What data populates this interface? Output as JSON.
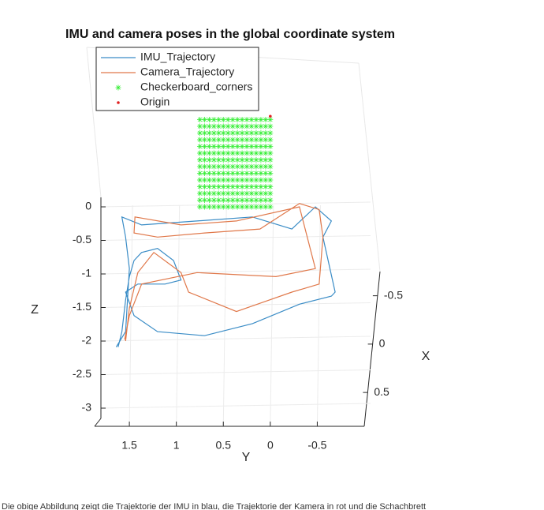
{
  "chart_data": {
    "type": "line3d",
    "title": "IMU and camera poses in the global coordinate system",
    "y_axis": {
      "label": "Y",
      "lim": [
        1.87,
        -1
      ],
      "ticks": [
        1.5,
        1,
        0.5,
        0,
        -0.5
      ]
    },
    "z_axis": {
      "label": "Z",
      "lim": [
        -3.15,
        0.1
      ],
      "ticks": [
        0,
        -0.5,
        -1,
        -1.5,
        -2,
        -2.5,
        -3
      ]
    },
    "x_axis": {
      "label": "X",
      "lim": [
        -0.75,
        0.85
      ],
      "ticks": [
        -0.5,
        0,
        0.5
      ]
    },
    "grid": true,
    "series": [
      {
        "name": "IMU_Trajectory",
        "color": "#3a8cc6",
        "marker": "line",
        "x": [
          1.62,
          1.58,
          1.54,
          1.5,
          1.45,
          1.37,
          1.2,
          1.03,
          0.95,
          1.12,
          1.41,
          1.54,
          1.45,
          1.2,
          0.7,
          0.19,
          -0.31,
          -0.65,
          -0.69,
          -0.56,
          -0.65,
          -0.48,
          -0.23,
          0.19,
          0.78,
          1.37,
          1.58,
          1.54,
          1.5,
          1.54,
          1.64
        ],
        "values": [
          -2.09,
          -1.86,
          -1.39,
          -1.04,
          -0.8,
          -0.68,
          -0.62,
          -0.8,
          -1.09,
          -1.15,
          -1.15,
          -1.27,
          -1.62,
          -1.86,
          -1.92,
          -1.74,
          -1.45,
          -1.33,
          -1.27,
          -0.45,
          -0.21,
          0,
          -0.33,
          -0.15,
          -0.21,
          -0.27,
          -0.15,
          -0.45,
          -0.92,
          -1.86,
          -2.09
        ]
      },
      {
        "name": "Camera_Trajectory",
        "color": "#e0784a",
        "marker": "line",
        "x": [
          1.54,
          1.5,
          1.41,
          1.24,
          0.95,
          0.87,
          0.36,
          -0.23,
          -0.52,
          -0.56,
          -0.52,
          -0.31,
          0.11,
          0.7,
          1.2,
          1.45,
          1.44,
          0.95,
          0.36,
          -0.31,
          -0.48,
          -0.06,
          0.78,
          1.37,
          1.5,
          1.55
        ],
        "values": [
          -2.0,
          -1.51,
          -0.98,
          -0.68,
          -0.98,
          -1.27,
          -1.56,
          -1.27,
          -1.15,
          -0.45,
          -0.04,
          0.05,
          -0.33,
          -0.39,
          -0.45,
          -0.39,
          -0.15,
          -0.27,
          -0.21,
          0,
          -0.92,
          -1.04,
          -0.98,
          -1.15,
          -1.62,
          -1.98
        ]
      },
      {
        "name": "Checkerboard_corners",
        "color": "#33ee33",
        "marker": "star",
        "columns": [
          0.75,
          0.7,
          0.65,
          0.6,
          0.55,
          0.5,
          0.45,
          0.4,
          0.35,
          0.3,
          0.25,
          0.2,
          0.15,
          0.1,
          0.05,
          0
        ],
        "rows": [
          0,
          0.1,
          0.2,
          0.3,
          0.4,
          0.5,
          0.6,
          0.7,
          0.8,
          0.9,
          1.0,
          1.1,
          1.2,
          1.3
        ]
      },
      {
        "name": "Origin",
        "color": "#e02020",
        "marker": "dot",
        "x": [
          0
        ],
        "values": [
          1.35
        ]
      }
    ]
  },
  "caption": "Die obige Abbildung zeigt die Trajektorie der IMU in blau, die Trajektorie der Kamera in rot und die Schachbrett"
}
